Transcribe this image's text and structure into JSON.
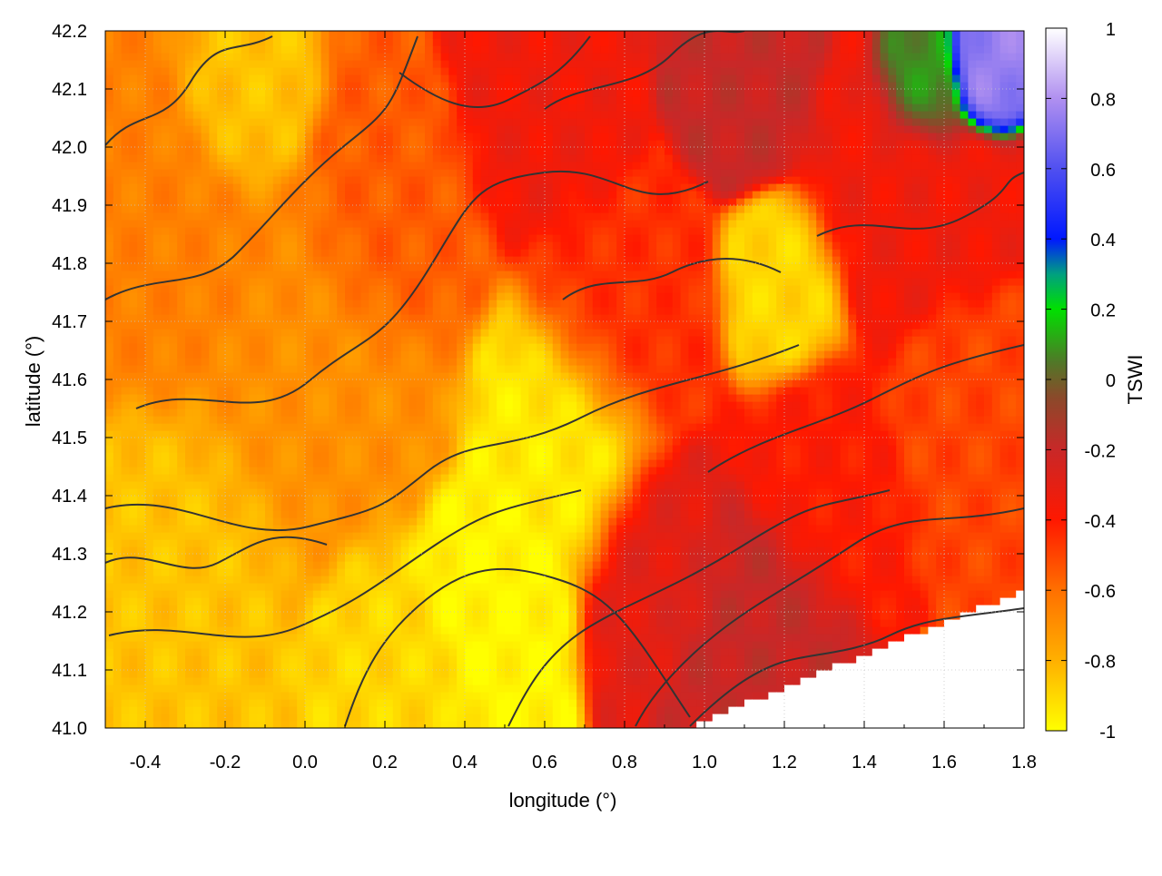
{
  "chart_data": {
    "type": "heatmap",
    "title": "",
    "xlabel": "longitude (°)",
    "ylabel": "latitude (°)",
    "colorbar_label": "TSWI",
    "xlim": [
      -0.5,
      1.8
    ],
    "ylim": [
      41.0,
      42.2
    ],
    "x_ticks": [
      "-0.4",
      "-0.2",
      "0.0",
      "0.2",
      "0.4",
      "0.6",
      "0.8",
      "1.0",
      "1.2",
      "1.4",
      "1.6",
      "1.8"
    ],
    "y_ticks": [
      "41.0",
      "41.1",
      "41.2",
      "41.3",
      "41.4",
      "41.5",
      "41.6",
      "41.7",
      "41.8",
      "41.9",
      "42.0",
      "42.1",
      "42.2"
    ],
    "colorbar_range": [
      -1,
      1
    ],
    "colorbar_ticks": [
      "-1",
      "-0.8",
      "-0.6",
      "-0.4",
      "-0.2",
      "0",
      "0.2",
      "0.4",
      "0.6",
      "0.8",
      "1"
    ],
    "grid": true,
    "colormap": [
      {
        "v": -1.0,
        "color": "#ffff00"
      },
      {
        "v": -0.8,
        "color": "#ffb000"
      },
      {
        "v": -0.6,
        "color": "#ff7000"
      },
      {
        "v": -0.4,
        "color": "#ff1800"
      },
      {
        "v": -0.2,
        "color": "#c82828"
      },
      {
        "v": -0.05,
        "color": "#8a4a2a"
      },
      {
        "v": 0.05,
        "color": "#507828"
      },
      {
        "v": 0.2,
        "color": "#00e000"
      },
      {
        "v": 0.3,
        "color": "#00a080"
      },
      {
        "v": 0.4,
        "color": "#0018ff"
      },
      {
        "v": 0.6,
        "color": "#5050f0"
      },
      {
        "v": 0.8,
        "color": "#b090f0"
      },
      {
        "v": 1.0,
        "color": "#ffffff"
      }
    ],
    "field_regions": [
      {
        "lon": 0.45,
        "lat": 41.25,
        "tswi": -0.98,
        "spread": 0.1
      },
      {
        "lon": 0.65,
        "lat": 41.5,
        "tswi": -0.95,
        "spread": 0.12
      },
      {
        "lon": 0.2,
        "lat": 41.15,
        "tswi": -0.9,
        "spread": 0.1
      },
      {
        "lon": -0.3,
        "lat": 41.3,
        "tswi": -0.85,
        "spread": 0.15
      },
      {
        "lon": -0.15,
        "lat": 42.05,
        "tswi": -0.85,
        "spread": 0.08
      },
      {
        "lon": 1.2,
        "lat": 41.75,
        "tswi": -0.9,
        "spread": 0.08
      },
      {
        "lon": 0.0,
        "lat": 41.6,
        "tswi": -0.7,
        "spread": 0.18
      },
      {
        "lon": -0.3,
        "lat": 41.8,
        "tswi": -0.65,
        "spread": 0.15
      },
      {
        "lon": 0.2,
        "lat": 41.85,
        "tswi": -0.55,
        "spread": 0.12
      },
      {
        "lon": 0.8,
        "lat": 41.7,
        "tswi": -0.45,
        "spread": 0.12
      },
      {
        "lon": 0.9,
        "lat": 41.3,
        "tswi": -0.3,
        "spread": 0.1
      },
      {
        "lon": 1.1,
        "lat": 41.2,
        "tswi": -0.2,
        "spread": 0.1
      },
      {
        "lon": 1.3,
        "lat": 41.45,
        "tswi": -0.4,
        "spread": 0.1
      },
      {
        "lon": 1.5,
        "lat": 41.9,
        "tswi": -0.35,
        "spread": 0.12
      },
      {
        "lon": 0.6,
        "lat": 42.05,
        "tswi": -0.35,
        "spread": 0.1
      },
      {
        "lon": 1.1,
        "lat": 42.1,
        "tswi": -0.2,
        "spread": 0.08
      },
      {
        "lon": 1.55,
        "lat": 42.1,
        "tswi": 0.1,
        "spread": 0.06
      },
      {
        "lon": 1.7,
        "lat": 42.13,
        "tswi": 0.75,
        "spread": 0.05
      },
      {
        "lon": 1.65,
        "lat": 41.55,
        "tswi": -0.5,
        "spread": 0.1
      }
    ],
    "nodata_region": "south-east coast (white)"
  }
}
